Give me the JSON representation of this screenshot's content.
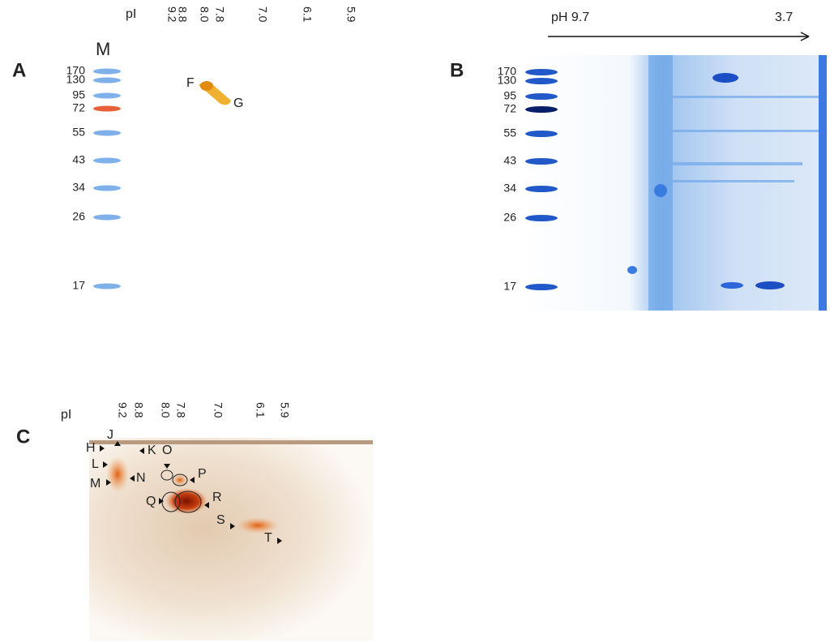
{
  "panels": [
    {
      "label": "A",
      "pi_label": "pI",
      "pi_values": [
        "9.2",
        "8.8",
        "8.0",
        "7.8",
        "7.0",
        "6.1",
        "5.9"
      ],
      "marker_label": "M",
      "mw_labels": [
        "170",
        "130",
        "95",
        "72",
        "55",
        "43",
        "34",
        "26",
        "17"
      ],
      "spot_labels": [
        "F",
        "G"
      ]
    },
    {
      "label": "B",
      "ph_start": "pH 9.7",
      "ph_end": "3.7",
      "mw_labels": [
        "170",
        "130",
        "95",
        "72",
        "55",
        "43",
        "34",
        "26",
        "17"
      ]
    },
    {
      "label": "C",
      "pi_label": "pI",
      "pi_values": [
        "9.2",
        "8.8",
        "8.0",
        "7.8",
        "7.0",
        "6.1",
        "5.9"
      ],
      "spot_labels": [
        "H",
        "J",
        "K",
        "O",
        "L",
        "N",
        "M",
        "P",
        "Q",
        "R",
        "S",
        "T"
      ]
    }
  ]
}
